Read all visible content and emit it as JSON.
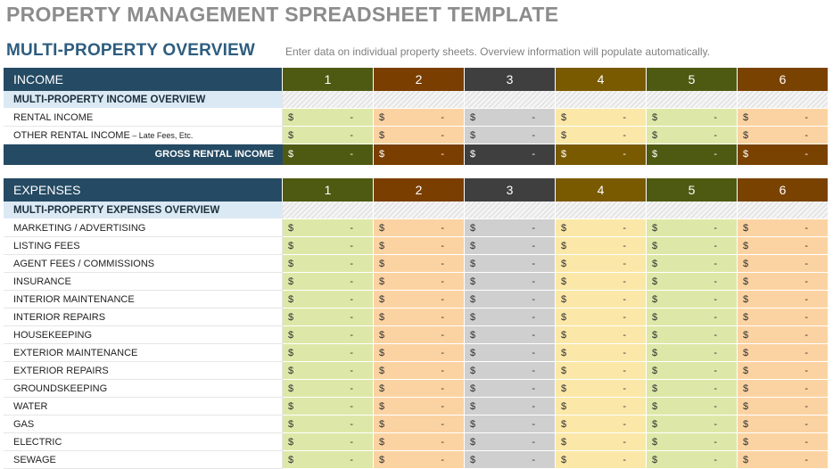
{
  "page": {
    "title": "PROPERTY MANAGEMENT SPREADSHEET TEMPLATE",
    "subtitle": "MULTI-PROPERTY OVERVIEW",
    "note": "Enter data on individual property sheets. Overview information will populate automatically."
  },
  "columns": [
    "1",
    "2",
    "3",
    "4",
    "5",
    "6"
  ],
  "currency_symbol": "$",
  "empty_value": "-",
  "colors": {
    "header_bg": "#254a63",
    "subheader_bg": "#dbe9f4",
    "column_headers": [
      "#4e5a12",
      "#7a3e00",
      "#3f3f3f",
      "#7a5a00",
      "#4e5a12",
      "#7a4200"
    ],
    "column_cells": [
      "#dde8a8",
      "#fbd3a2",
      "#cfcfcf",
      "#fbe8a8",
      "#dde8a8",
      "#fbd3a2"
    ]
  },
  "income": {
    "header": "INCOME",
    "overview_label": "MULTI-PROPERTY INCOME OVERVIEW",
    "rows": [
      {
        "label": "RENTAL INCOME",
        "note": ""
      },
      {
        "label": "OTHER RENTAL INCOME",
        "note": " – Late Fees, Etc."
      }
    ],
    "total_label": "GROSS RENTAL INCOME"
  },
  "expenses": {
    "header": "EXPENSES",
    "overview_label": "MULTI-PROPERTY EXPENSES OVERVIEW",
    "rows": [
      "MARKETING / ADVERTISING",
      "LISTING FEES",
      "AGENT FEES / COMMISSIONS",
      "INSURANCE",
      "INTERIOR MAINTENANCE",
      "INTERIOR REPAIRS",
      "HOUSEKEEPING",
      "EXTERIOR MAINTENANCE",
      "EXTERIOR REPAIRS",
      "GROUNDSKEEPING",
      "WATER",
      "GAS",
      "ELECTRIC",
      "SEWAGE"
    ]
  }
}
